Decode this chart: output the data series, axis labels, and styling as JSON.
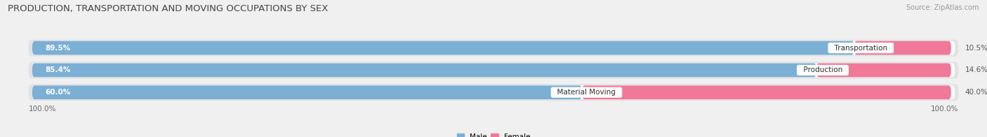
{
  "title": "PRODUCTION, TRANSPORTATION AND MOVING OCCUPATIONS BY SEX",
  "source": "Source: ZipAtlas.com",
  "categories": [
    "Transportation",
    "Production",
    "Material Moving"
  ],
  "male_pct": [
    89.5,
    85.4,
    60.0
  ],
  "female_pct": [
    10.5,
    14.6,
    40.0
  ],
  "male_color": "#7bafd4",
  "female_color": "#f07898",
  "male_label": "Male",
  "female_label": "Female",
  "axis_label_left": "100.0%",
  "axis_label_right": "100.0%",
  "bg_color": "#f0f0f0",
  "row_bg_color": "#e2e2e2",
  "bar_inner_bg": "#ffffff",
  "title_fontsize": 9.5,
  "source_fontsize": 7,
  "label_fontsize": 7.5,
  "bar_label_fontsize": 7.5,
  "category_fontsize": 7.5
}
